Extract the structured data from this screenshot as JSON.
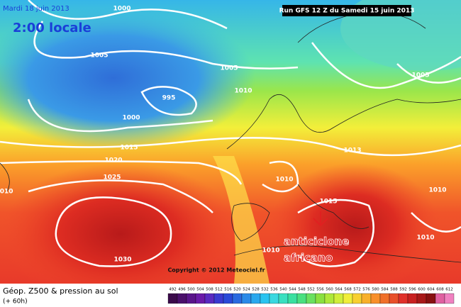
{
  "header": {
    "date": "Mardi 18 juin 2013",
    "time": "2:00 locale",
    "run": "Run GFS 12 Z du Samedi 15 juin 2013"
  },
  "isobar_labels": [
    "1000",
    "1005",
    "995",
    "1000",
    "1005",
    "1010",
    "1005",
    "1015",
    "1020",
    "1025",
    "1013",
    "1010",
    "1015",
    "1010",
    "1010",
    "1030",
    "1010",
    "1010"
  ],
  "annotation": [
    "anticiclone",
    "africano"
  ],
  "copyright": "Copyright © 2012 Meteociel.fr",
  "footer": {
    "title": "Géop. Z500 & pression au sol",
    "lead": "(+ 60h)"
  },
  "legend": [
    "492",
    "496",
    "500",
    "504",
    "508",
    "512",
    "516",
    "520",
    "524",
    "528",
    "532",
    "536",
    "540",
    "544",
    "548",
    "552",
    "556",
    "560",
    "564",
    "568",
    "572",
    "576",
    "580",
    "584",
    "588",
    "592",
    "596",
    "600",
    "604",
    "608",
    "612"
  ]
}
